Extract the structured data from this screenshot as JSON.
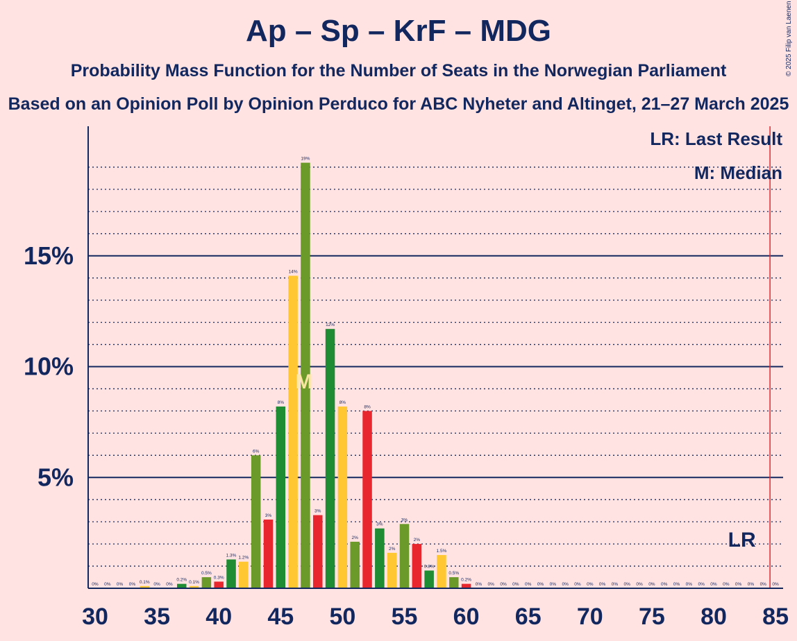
{
  "header": {
    "title": "Ap – Sp – KrF – MDG",
    "subtitle": "Probability Mass Function for the Number of Seats in the Norwegian Parliament",
    "subtitle2": "Based on an Opinion Poll by Opinion Perduco for ABC Nyheter and Altinget, 21–27 March 2025",
    "copyright": "© 2025 Filip van Laenen"
  },
  "chart_data": {
    "type": "bar",
    "title": "Ap – Sp – KrF – MDG",
    "xlim": [
      30,
      85
    ],
    "ylim": [
      0,
      21
    ],
    "yticks": [
      {
        "value": 5,
        "label": "5%"
      },
      {
        "value": 10,
        "label": "10%"
      },
      {
        "value": 15,
        "label": "15%"
      }
    ],
    "xticks": [
      30,
      35,
      40,
      45,
      50,
      55,
      60,
      65,
      70,
      75,
      80,
      85
    ],
    "grid": "dotted every 1%, solid at 5% steps",
    "legend": {
      "lr": "LR: Last Result",
      "median": "M: Median"
    },
    "last_result": {
      "seat": 85,
      "label": "LR",
      "label_seat": 82,
      "color": "#E8262D"
    },
    "median": {
      "seat": 47,
      "label": "M"
    },
    "colors": {
      "red": "#E8262D",
      "green": "#1F8B33",
      "olive": "#6C9A2A",
      "yellow": "#FFC832",
      "axis": "#12275e"
    },
    "bars": [
      {
        "seat": 30,
        "value": 0,
        "label": "0%",
        "color": "red"
      },
      {
        "seat": 31,
        "value": 0,
        "label": "0%",
        "color": "green"
      },
      {
        "seat": 32,
        "value": 0,
        "label": "0%",
        "color": "olive"
      },
      {
        "seat": 33,
        "value": 0,
        "label": "0%",
        "color": "yellow"
      },
      {
        "seat": 34,
        "value": 0.1,
        "label": "0.1%",
        "color": "yellow"
      },
      {
        "seat": 35,
        "value": 0,
        "label": "0%",
        "color": "red"
      },
      {
        "seat": 36,
        "value": 0,
        "label": "0%",
        "color": "red"
      },
      {
        "seat": 37,
        "value": 0.2,
        "label": "0.2%",
        "color": "green"
      },
      {
        "seat": 38,
        "value": 0.1,
        "label": "0.1%",
        "color": "yellow"
      },
      {
        "seat": 39,
        "value": 0.5,
        "label": "0.5%",
        "color": "olive"
      },
      {
        "seat": 40,
        "value": 0.3,
        "label": "0.3%",
        "color": "red"
      },
      {
        "seat": 41,
        "value": 1.3,
        "label": "1.3%",
        "color": "green"
      },
      {
        "seat": 42,
        "value": 1.2,
        "label": "1.2%",
        "color": "yellow"
      },
      {
        "seat": 43,
        "value": 6.0,
        "label": "6%",
        "color": "olive"
      },
      {
        "seat": 44,
        "value": 3.1,
        "label": "3%",
        "color": "red"
      },
      {
        "seat": 45,
        "value": 8.2,
        "label": "8%",
        "color": "green"
      },
      {
        "seat": 46,
        "value": 14.1,
        "label": "14%",
        "color": "yellow"
      },
      {
        "seat": 47,
        "value": 19.2,
        "label": "19%",
        "color": "olive"
      },
      {
        "seat": 48,
        "value": 3.3,
        "label": "3%",
        "color": "red"
      },
      {
        "seat": 49,
        "value": 11.7,
        "label": "12%",
        "color": "green"
      },
      {
        "seat": 50,
        "value": 8.2,
        "label": "8%",
        "color": "yellow"
      },
      {
        "seat": 51,
        "value": 2.1,
        "label": "2%",
        "color": "olive"
      },
      {
        "seat": 52,
        "value": 8.0,
        "label": "8%",
        "color": "red"
      },
      {
        "seat": 53,
        "value": 2.7,
        "label": "3%",
        "color": "green"
      },
      {
        "seat": 54,
        "value": 1.6,
        "label": "2%",
        "color": "yellow"
      },
      {
        "seat": 55,
        "value": 2.9,
        "label": "3%",
        "color": "olive"
      },
      {
        "seat": 56,
        "value": 2.0,
        "label": "2%",
        "color": "red"
      },
      {
        "seat": 57,
        "value": 0.8,
        "label": "0.8%",
        "color": "green"
      },
      {
        "seat": 58,
        "value": 1.5,
        "label": "1.5%",
        "color": "yellow"
      },
      {
        "seat": 59,
        "value": 0.5,
        "label": "0.5%",
        "color": "olive"
      },
      {
        "seat": 60,
        "value": 0.2,
        "label": "0.2%",
        "color": "red"
      },
      {
        "seat": 61,
        "value": 0,
        "label": "0%",
        "color": "green"
      },
      {
        "seat": 62,
        "value": 0,
        "label": "0%",
        "color": "yellow"
      },
      {
        "seat": 63,
        "value": 0,
        "label": "0%",
        "color": "olive"
      },
      {
        "seat": 64,
        "value": 0,
        "label": "0%",
        "color": "red"
      },
      {
        "seat": 65,
        "value": 0,
        "label": "0%",
        "color": "green"
      },
      {
        "seat": 66,
        "value": 0,
        "label": "0%",
        "color": "yellow"
      },
      {
        "seat": 67,
        "value": 0,
        "label": "0%",
        "color": "olive"
      },
      {
        "seat": 68,
        "value": 0,
        "label": "0%",
        "color": "red"
      },
      {
        "seat": 69,
        "value": 0,
        "label": "0%",
        "color": "green"
      },
      {
        "seat": 70,
        "value": 0,
        "label": "0%",
        "color": "yellow"
      },
      {
        "seat": 71,
        "value": 0,
        "label": "0%",
        "color": "olive"
      },
      {
        "seat": 72,
        "value": 0,
        "label": "0%",
        "color": "red"
      },
      {
        "seat": 73,
        "value": 0,
        "label": "0%",
        "color": "green"
      },
      {
        "seat": 74,
        "value": 0,
        "label": "0%",
        "color": "yellow"
      },
      {
        "seat": 75,
        "value": 0,
        "label": "0%",
        "color": "olive"
      },
      {
        "seat": 76,
        "value": 0,
        "label": "0%",
        "color": "red"
      },
      {
        "seat": 77,
        "value": 0,
        "label": "0%",
        "color": "green"
      },
      {
        "seat": 78,
        "value": 0,
        "label": "0%",
        "color": "yellow"
      },
      {
        "seat": 79,
        "value": 0,
        "label": "0%",
        "color": "olive"
      },
      {
        "seat": 80,
        "value": 0,
        "label": "0%",
        "color": "red"
      },
      {
        "seat": 81,
        "value": 0,
        "label": "0%",
        "color": "green"
      },
      {
        "seat": 82,
        "value": 0,
        "label": "0%",
        "color": "yellow"
      },
      {
        "seat": 83,
        "value": 0,
        "label": "0%",
        "color": "olive"
      },
      {
        "seat": 84,
        "value": 0,
        "label": "0%",
        "color": "red"
      },
      {
        "seat": 85,
        "value": 0,
        "label": "0%",
        "color": "green"
      }
    ]
  }
}
